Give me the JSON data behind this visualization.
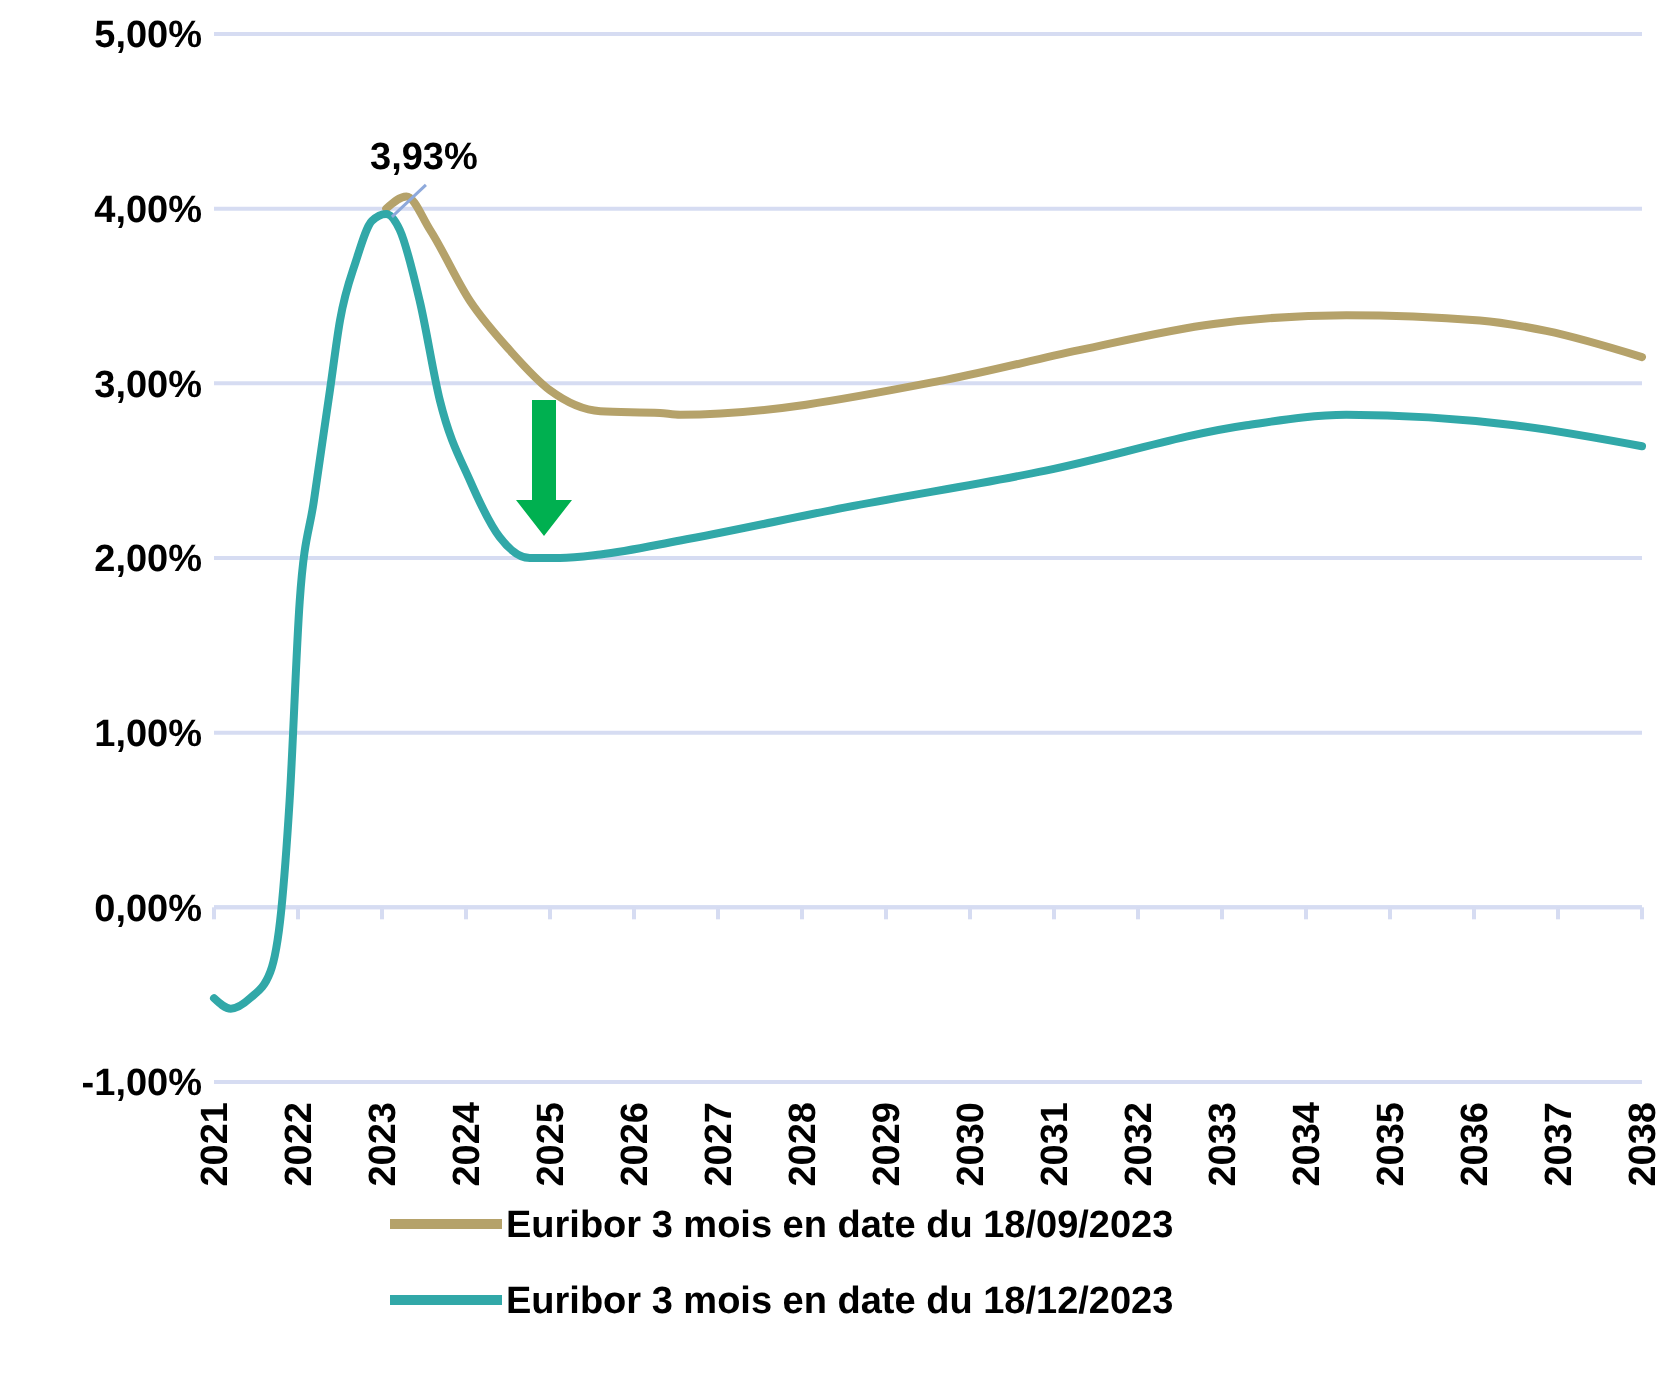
{
  "chart_data": {
    "type": "line",
    "x": [
      2021.0,
      2021.2,
      2021.43,
      2021.67,
      2021.8,
      2021.9,
      2022.02,
      2022.19,
      2022.38,
      2022.5,
      2022.69,
      2022.88,
      2023.05,
      2023.21,
      2023.45,
      2023.69,
      2024.05,
      2024.4,
      2024.76,
      2025.12,
      2025.6,
      2026.55,
      2028.52,
      2030.9,
      2033.29,
      2034.48,
      2036.48,
      2038.0
    ],
    "series": [
      {
        "name": "Euribor 3 mois en date du 18/09/2023",
        "color": "#b5a26a",
        "x": [
          2023.05,
          2023.29,
          2023.57,
          2024.05,
          2024.52,
          2025.0,
          2025.6,
          2026.31,
          2026.55,
          2029.71,
          2031.3,
          2032.9,
          2034.48,
          2036.07,
          2036.86,
          2038.0
        ],
        "values": [
          4.0,
          4.07,
          3.88,
          3.47,
          3.19,
          2.96,
          2.84,
          2.83,
          2.82,
          3.02,
          3.19,
          3.34,
          3.39,
          3.36,
          3.3,
          3.15
        ]
      },
      {
        "name": "Euribor 3 mois en date du 18/12/2023",
        "color": "#31a8a8",
        "values": [
          -0.52,
          -0.58,
          -0.52,
          -0.37,
          -0.02,
          0.61,
          1.75,
          2.33,
          2.96,
          3.36,
          3.7,
          3.93,
          3.97,
          3.88,
          3.47,
          2.9,
          2.44,
          2.12,
          2.0,
          2.0,
          2.02,
          2.1,
          2.29,
          2.5,
          2.76,
          2.82,
          2.76,
          2.64
        ]
      }
    ],
    "xlim": [
      2021,
      2038
    ],
    "xticks": [
      2021,
      2022,
      2023,
      2024,
      2025,
      2026,
      2027,
      2028,
      2029,
      2030,
      2031,
      2032,
      2033,
      2034,
      2035,
      2036,
      2037,
      2038
    ],
    "ylim": [
      -1,
      5
    ],
    "yticks": [
      {
        "value": -1,
        "label": "-1,00%"
      },
      {
        "value": 0,
        "label": "0,00%"
      },
      {
        "value": 1,
        "label": "1,00%"
      },
      {
        "value": 2,
        "label": "2,00%"
      },
      {
        "value": 3,
        "label": "3,00%"
      },
      {
        "value": 4,
        "label": "4,00%"
      },
      {
        "value": 5,
        "label": "5,00%"
      }
    ],
    "annotations": [
      {
        "text": "3,93%",
        "x": 2022.88,
        "y": 3.93
      }
    ],
    "grid": "y",
    "legend": "bottom",
    "marker": "none",
    "line_style": "solid"
  }
}
